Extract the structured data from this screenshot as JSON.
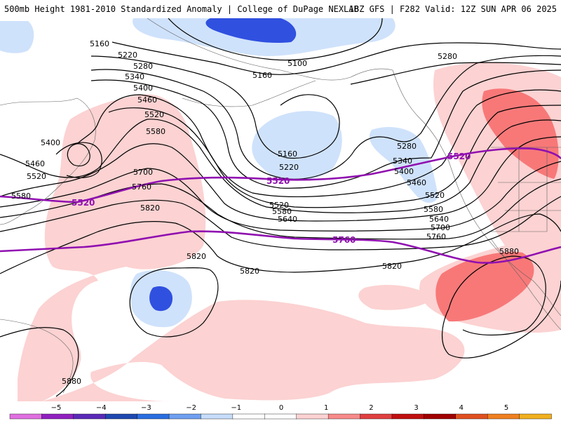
{
  "header": {
    "title_left": "500mb Height 1981-2010 Standardized Anomaly | College of DuPage NEXLAB",
    "title_right": "18Z GFS | F282 Valid: 12Z SUN APR 06 2025"
  },
  "map": {
    "contour_labels": {
      "c5100": "5100",
      "c5160a": "5160",
      "c5160b": "5160",
      "c5160c": "5160",
      "c5220a": "5220",
      "c5220b": "5220",
      "c5280a": "5280",
      "c5280b": "5280",
      "c5280c": "5280",
      "c5340a": "5340",
      "c5340b": "5340",
      "c5400a": "5400",
      "c5400b": "5400",
      "c5400c": "5400",
      "c5460a": "5460",
      "c5460b": "5460",
      "c5460c": "5460",
      "c5520a": "5520",
      "c5520b": "5520",
      "c5520c": "5520",
      "c5520d": "5520",
      "c5580a": "5580",
      "c5580b": "5580",
      "c5580c": "5580",
      "c5580d": "5580",
      "c5640a": "5640",
      "c5640b": "5640",
      "c5700a": "5700",
      "c5700b": "5700",
      "c5760a": "5760",
      "c5760b": "5760",
      "c5820a": "5820",
      "c5820b": "5820",
      "c5820c": "5820",
      "c5820d": "5820",
      "c5880a": "5880",
      "c5880b": "5880"
    },
    "reference_labels": {
      "r5520a": "5520",
      "r5520b": "5520",
      "r5520c": "5520",
      "r5760": "5760"
    },
    "colors": {
      "contour": "#000000",
      "reference_contour": "#9010b0",
      "pos_1": "#fcd2d2",
      "pos_2": "#f87878",
      "pos_3": "#e02020",
      "neg_1": "#cfe2fb",
      "neg_2": "#6a8df0",
      "neg_3": "#3050e0",
      "land_border": "#606060"
    }
  },
  "colorbar": {
    "ticks": [
      "−5",
      "−4",
      "−3",
      "−2",
      "−1",
      "0",
      "1",
      "2",
      "3",
      "4",
      "5"
    ],
    "segment_colors": [
      "#e070e0",
      "#9020c0",
      "#5a2ab8",
      "#1f48b0",
      "#2a6ee0",
      "#6f9ff0",
      "#c6dcfa",
      "#ffffff",
      "#ffffff",
      "#fcd2d2",
      "#f88a8a",
      "#e04040",
      "#c01010",
      "#a00000",
      "#e05020",
      "#f08020",
      "#f0b020"
    ]
  }
}
